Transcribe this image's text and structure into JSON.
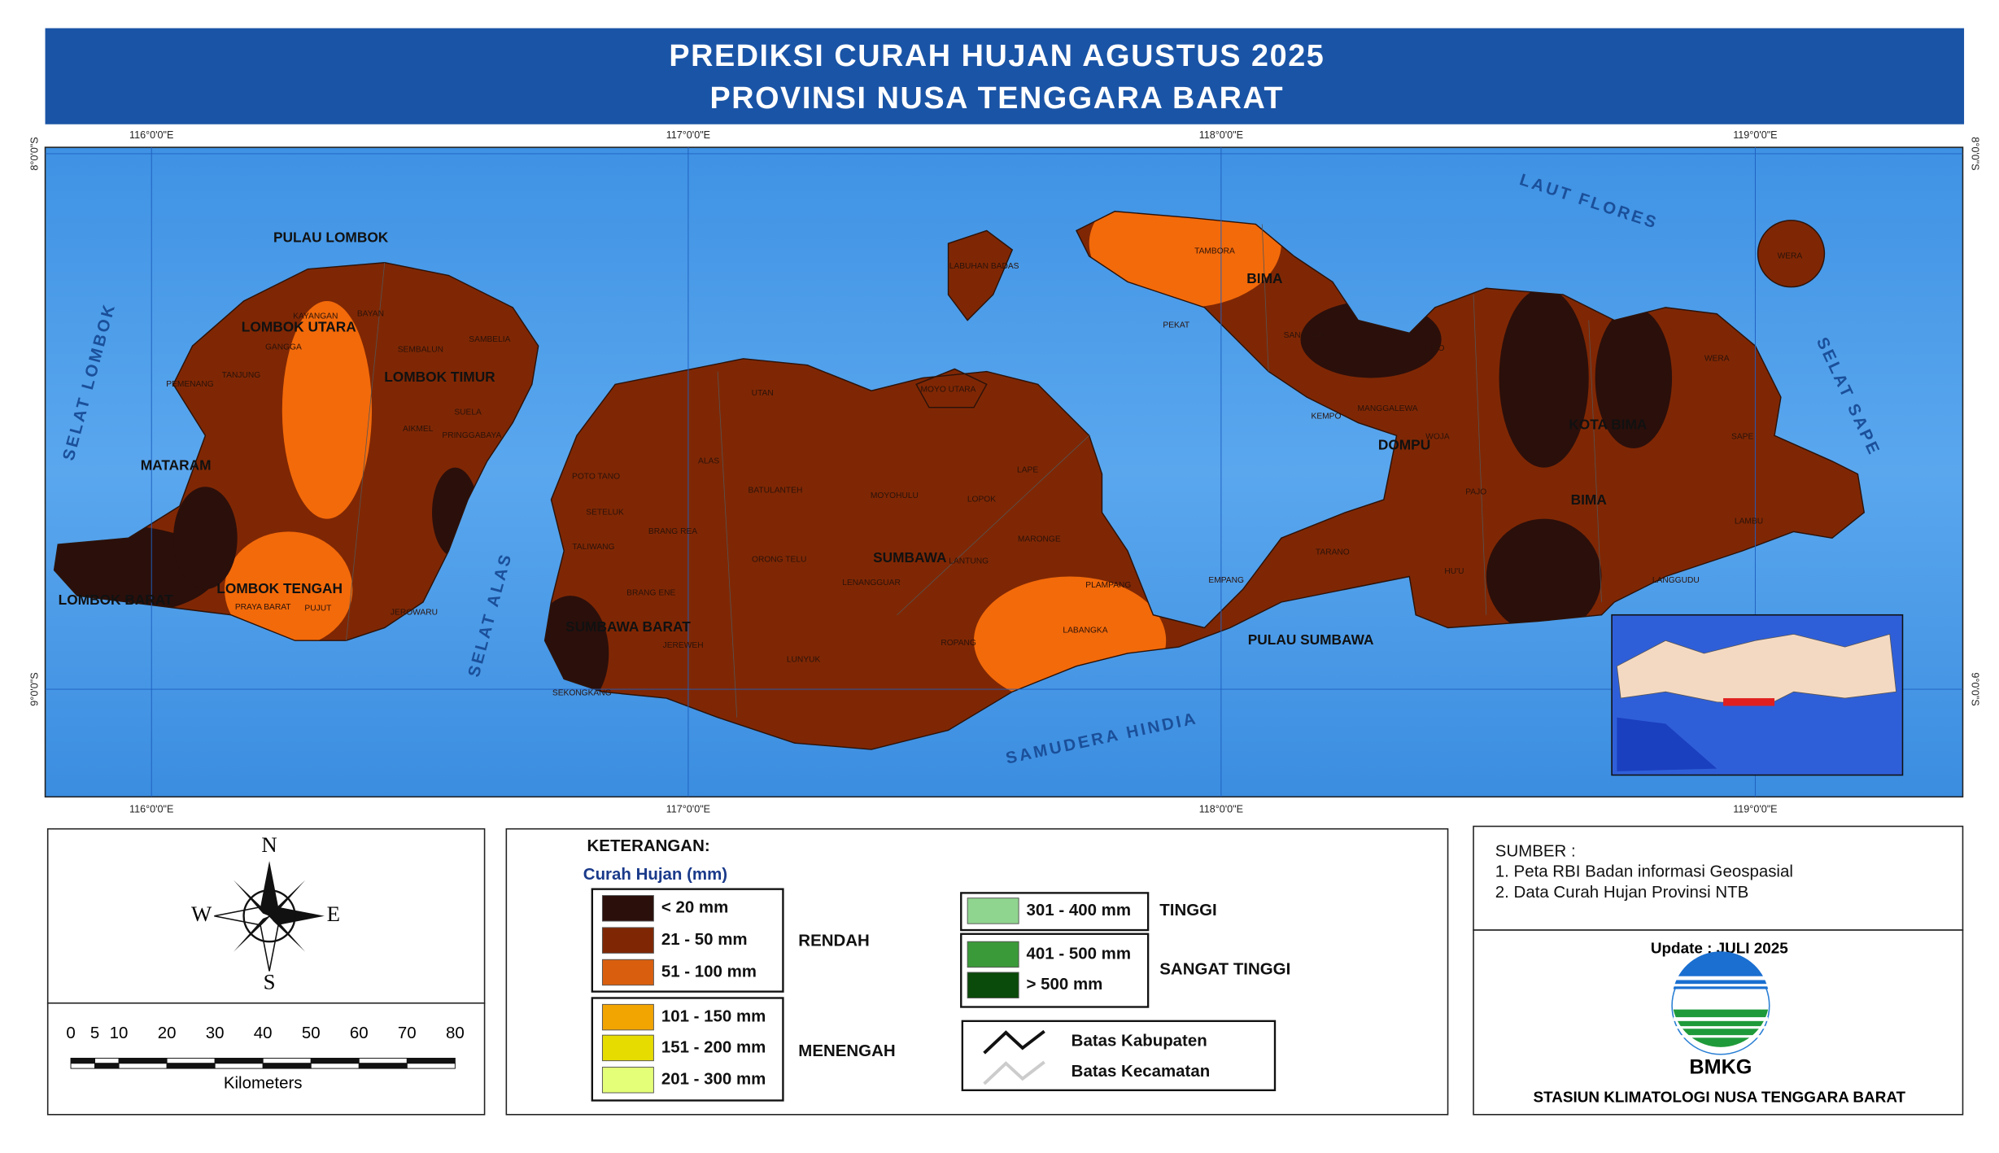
{
  "header": {
    "title_line1": "PREDIKSI CURAH HUJAN AGUSTUS 2025",
    "title_line2": "PROVINSI NUSA TENGGARA BARAT"
  },
  "map": {
    "lat_labels": [
      "8°0'0\"S",
      "9°0'0\"S"
    ],
    "lon_labels": [
      "116°0'0\"E",
      "117°0'0\"E",
      "118°0'0\"E",
      "119°0'0\"E"
    ],
    "region_labels": [
      "PULAU LOMBOK",
      "LOMBOK UTARA",
      "LOMBOK TIMUR",
      "MATARAM",
      "LOMBOK BARAT",
      "LOMBOK TENGAH",
      "SUMBAWA BARAT",
      "SUMBAWA",
      "BIMA",
      "KOTA BIMA",
      "DOMPU",
      "BIMA",
      "PULAU SUMBAWA"
    ],
    "sea_labels": [
      "LAUT FLORES",
      "SAMUDERA HINDIA",
      "SELAT LOMBOK",
      "SELAT ALAS",
      "SELAT SAPE"
    ],
    "kecamatan_labels": [
      "TAMBORA",
      "PEKAT",
      "SANGGAR",
      "KILO",
      "LABUHAN BADAS",
      "MOYO UTARA",
      "UTAN",
      "ALAS",
      "LUNYUK",
      "ROPANG",
      "LABANGKA",
      "PLAMPANG",
      "EMPANG",
      "TARANO",
      "HU'U",
      "PAJO",
      "WERA",
      "SAPE",
      "LAMBU",
      "LANGGUDU",
      "WOJA",
      "MANGGALEWA",
      "KEMPO",
      "LENANGGUAR",
      "ORONG TELU",
      "BATULANTEH",
      "MOYOHULU",
      "LOPOK",
      "LAPE",
      "MARONGE",
      "LANTUNG",
      "JEREWEH",
      "BRANG ENE",
      "BRANG REA",
      "TALIWANG",
      "SETELUK",
      "POTO TANO",
      "SEKONGKANG",
      "BAYAN",
      "KAYANGAN",
      "GANGGA",
      "TANJUNG",
      "PEMENANG",
      "SEMBALUN",
      "SAMBELIA",
      "PRINGGABAYA",
      "SUELA",
      "AIKMEL",
      "JEROWARU",
      "PUJUT",
      "PRAYA BARAT",
      "WERA"
    ]
  },
  "compass": {
    "n": "N",
    "s": "S",
    "e": "E",
    "w": "W"
  },
  "scale": {
    "ticks": [
      0,
      5,
      10,
      20,
      30,
      40,
      50,
      60,
      70,
      80
    ],
    "unit": "Kilometers"
  },
  "legend": {
    "title": "KETERANGAN:",
    "subtitle": "Curah Hujan (mm)",
    "classes": [
      {
        "label": "< 20 mm",
        "color": "#2b0f0b"
      },
      {
        "label": "21 - 50 mm",
        "color": "#7f2704"
      },
      {
        "label": "51 - 100 mm",
        "color": "#d95f0e"
      },
      {
        "label": "101 - 150 mm",
        "color": "#f2a400"
      },
      {
        "label": "151 - 200 mm",
        "color": "#e6dc00"
      },
      {
        "label": "201 - 300 mm",
        "color": "#e4ff78"
      },
      {
        "label": "301 - 400 mm",
        "color": "#8fd48f"
      },
      {
        "label": "401 - 500 mm",
        "color": "#3a9a3a"
      },
      {
        "label": "> 500 mm",
        "color": "#0a4a0a"
      }
    ],
    "categories": [
      "RENDAH",
      "MENENGAH",
      "TINGGI",
      "SANGAT TINGGI"
    ],
    "lines": [
      "Batas Kabupaten",
      "Batas Kecamatan"
    ]
  },
  "source": {
    "title": "SUMBER :",
    "items": [
      "1. Peta RBI Badan informasi Geospasial",
      "2. Data Curah Hujan Provinsi NTB"
    ]
  },
  "footer": {
    "update": "Update : JULI 2025",
    "logo_text": "BMKG",
    "station": "STASIUN KLIMATOLOGI NUSA TENGGARA BARAT"
  }
}
